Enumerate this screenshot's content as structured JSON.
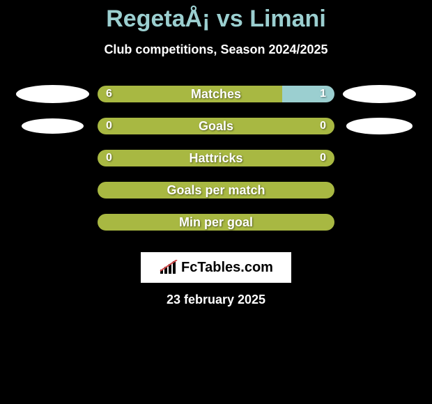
{
  "title": "RegetaÅ¡ vs Limani",
  "subtitle": "Club competitions, Season 2024/2025",
  "date": "23 february 2025",
  "colors": {
    "left": "#a8b842",
    "right": "#9bcfd0",
    "background": "#000000",
    "title": "#9bcfd0",
    "text": "#ffffff"
  },
  "logo_text": "FcTables.com",
  "stats": [
    {
      "label": "Matches",
      "left_value": "6",
      "right_value": "1",
      "left_pct": 78,
      "right_pct": 22,
      "show_values": true,
      "left_ellipse": true,
      "right_ellipse": true,
      "ellipse_left_size": 1.0,
      "ellipse_right_size": 1.0
    },
    {
      "label": "Goals",
      "left_value": "0",
      "right_value": "0",
      "left_pct": 100,
      "right_pct": 0,
      "show_values": true,
      "left_ellipse": true,
      "right_ellipse": true,
      "ellipse_left_size": 0.85,
      "ellipse_right_size": 0.9
    },
    {
      "label": "Hattricks",
      "left_value": "0",
      "right_value": "0",
      "left_pct": 100,
      "right_pct": 0,
      "show_values": true,
      "left_ellipse": false,
      "right_ellipse": false
    },
    {
      "label": "Goals per match",
      "left_value": "",
      "right_value": "",
      "left_pct": 100,
      "right_pct": 0,
      "show_values": false,
      "left_ellipse": false,
      "right_ellipse": false
    },
    {
      "label": "Min per goal",
      "left_value": "",
      "right_value": "",
      "left_pct": 100,
      "right_pct": 0,
      "show_values": false,
      "left_ellipse": false,
      "right_ellipse": false
    }
  ]
}
